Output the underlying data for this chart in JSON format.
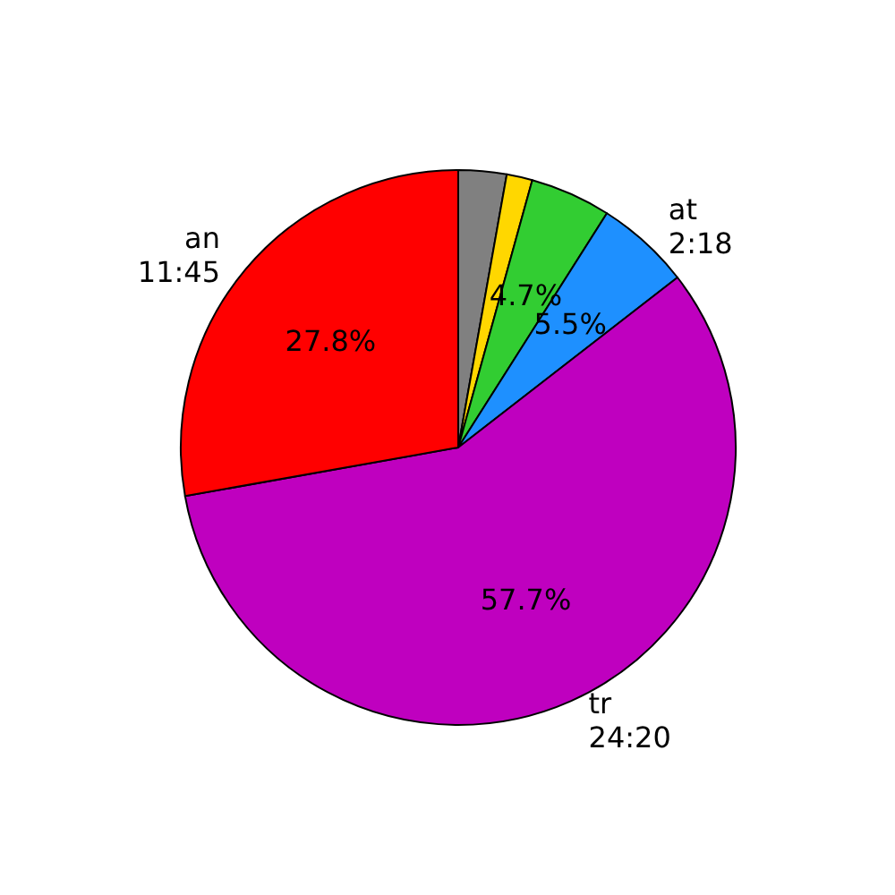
{
  "chart_data": {
    "type": "pie",
    "categories": [
      null,
      null,
      null,
      "at\n2:18",
      "tr\n24:20",
      "an\n11:45"
    ],
    "values": [
      2.8,
      1.5,
      4.7,
      5.5,
      57.7,
      27.8
    ],
    "colors": [
      "#808080",
      "#ffd700",
      "#32cd32",
      "#1e90ff",
      "#bf00bf",
      "#ff0000"
    ],
    "value_labels": [
      null,
      null,
      "4.7%",
      "5.5%",
      "57.7%",
      "27.8%"
    ]
  }
}
